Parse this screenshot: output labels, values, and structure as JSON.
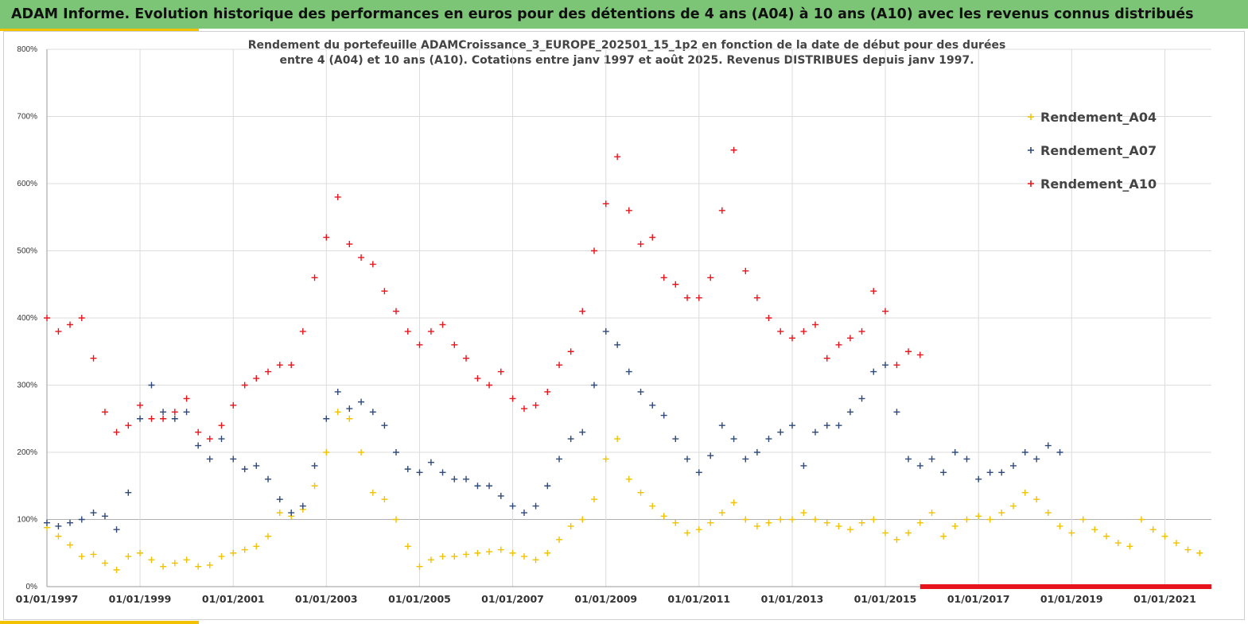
{
  "banner": {
    "title": "ADAM Informe. Evolution historique des performances en euros pour des détentions de 4 ans (A04) à 10 ans (A10) avec les revenus connus distribués"
  },
  "colors": {
    "banner_bg": "#7cc576",
    "accent": "#f2c200",
    "A04": "#f2c200",
    "A07": "#2f4a7a",
    "A10": "#e8141c"
  },
  "chart_data": {
    "type": "scatter",
    "title_lines": [
      "Rendement du portefeuille ADAMCroissance_3_EUROPE_202501_15_1p2  en fonction de la date de début pour des durées",
      "entre 4 (A04) et 10 ans (A10). Cotations entre janv 1997 et août 2025. Revenus DISTRIBUES depuis janv 1997."
    ],
    "xlabel": "",
    "ylabel": "",
    "x_range": [
      "1997-01-01",
      "2022-01-01"
    ],
    "ylim": [
      0,
      800
    ],
    "y_ticks": [
      "0%",
      "100%",
      "200%",
      "300%",
      "400%",
      "500%",
      "600%",
      "700%",
      "800%"
    ],
    "x_ticks": [
      "01/01/1997",
      "01/01/1999",
      "01/01/2001",
      "01/01/2003",
      "01/01/2005",
      "01/01/2007",
      "01/01/2009",
      "01/01/2011",
      "01/01/2013",
      "01/01/2015",
      "01/01/2017",
      "01/01/2019",
      "01/01/2021"
    ],
    "grid": true,
    "legend_position": "top-right",
    "marker": "+",
    "series": [
      {
        "name": "Rendement_A04",
        "color": "#f2c200",
        "points": [
          [
            "1997-01-01",
            88
          ],
          [
            "1997-04-01",
            75
          ],
          [
            "1997-07-01",
            62
          ],
          [
            "1997-10-01",
            45
          ],
          [
            "1998-01-01",
            48
          ],
          [
            "1998-04-01",
            35
          ],
          [
            "1998-07-01",
            25
          ],
          [
            "1998-10-01",
            45
          ],
          [
            "1999-01-01",
            50
          ],
          [
            "1999-04-01",
            40
          ],
          [
            "1999-07-01",
            30
          ],
          [
            "1999-10-01",
            35
          ],
          [
            "2000-01-01",
            40
          ],
          [
            "2000-04-01",
            30
          ],
          [
            "2000-07-01",
            32
          ],
          [
            "2000-10-01",
            45
          ],
          [
            "2001-01-01",
            50
          ],
          [
            "2001-04-01",
            55
          ],
          [
            "2001-07-01",
            60
          ],
          [
            "2001-10-01",
            75
          ],
          [
            "2002-01-01",
            110
          ],
          [
            "2002-04-01",
            105
          ],
          [
            "2002-07-01",
            115
          ],
          [
            "2002-10-01",
            150
          ],
          [
            "2003-01-01",
            200
          ],
          [
            "2003-04-01",
            260
          ],
          [
            "2003-07-01",
            250
          ],
          [
            "2003-10-01",
            200
          ],
          [
            "2004-01-01",
            140
          ],
          [
            "2004-04-01",
            130
          ],
          [
            "2004-07-01",
            100
          ],
          [
            "2004-10-01",
            60
          ],
          [
            "2005-01-01",
            30
          ],
          [
            "2005-04-01",
            40
          ],
          [
            "2005-07-01",
            45
          ],
          [
            "2005-10-01",
            45
          ],
          [
            "2006-01-01",
            48
          ],
          [
            "2006-04-01",
            50
          ],
          [
            "2006-07-01",
            52
          ],
          [
            "2006-10-01",
            55
          ],
          [
            "2007-01-01",
            50
          ],
          [
            "2007-04-01",
            45
          ],
          [
            "2007-07-01",
            40
          ],
          [
            "2007-10-01",
            50
          ],
          [
            "2008-01-01",
            70
          ],
          [
            "2008-04-01",
            90
          ],
          [
            "2008-07-01",
            100
          ],
          [
            "2008-10-01",
            130
          ],
          [
            "2009-01-01",
            190
          ],
          [
            "2009-04-01",
            220
          ],
          [
            "2009-07-01",
            160
          ],
          [
            "2009-10-01",
            140
          ],
          [
            "2010-01-01",
            120
          ],
          [
            "2010-04-01",
            105
          ],
          [
            "2010-07-01",
            95
          ],
          [
            "2010-10-01",
            80
          ],
          [
            "2011-01-01",
            85
          ],
          [
            "2011-04-01",
            95
          ],
          [
            "2011-07-01",
            110
          ],
          [
            "2011-10-01",
            125
          ],
          [
            "2012-01-01",
            100
          ],
          [
            "2012-04-01",
            90
          ],
          [
            "2012-07-01",
            95
          ],
          [
            "2012-10-01",
            100
          ],
          [
            "2013-01-01",
            100
          ],
          [
            "2013-04-01",
            110
          ],
          [
            "2013-07-01",
            100
          ],
          [
            "2013-10-01",
            95
          ],
          [
            "2014-01-01",
            90
          ],
          [
            "2014-04-01",
            85
          ],
          [
            "2014-07-01",
            95
          ],
          [
            "2014-10-01",
            100
          ],
          [
            "2015-01-01",
            80
          ],
          [
            "2015-04-01",
            70
          ],
          [
            "2015-07-01",
            80
          ],
          [
            "2015-10-01",
            95
          ],
          [
            "2016-01-01",
            110
          ],
          [
            "2016-04-01",
            75
          ],
          [
            "2016-07-01",
            90
          ],
          [
            "2016-10-01",
            100
          ],
          [
            "2017-01-01",
            105
          ],
          [
            "2017-04-01",
            100
          ],
          [
            "2017-07-01",
            110
          ],
          [
            "2017-10-01",
            120
          ],
          [
            "2018-01-01",
            140
          ],
          [
            "2018-04-01",
            130
          ],
          [
            "2018-07-01",
            110
          ],
          [
            "2018-10-01",
            90
          ],
          [
            "2019-01-01",
            80
          ],
          [
            "2019-04-01",
            100
          ],
          [
            "2019-07-01",
            85
          ],
          [
            "2019-10-01",
            75
          ],
          [
            "2020-01-01",
            65
          ],
          [
            "2020-04-01",
            60
          ],
          [
            "2020-07-01",
            100
          ],
          [
            "2020-10-01",
            85
          ],
          [
            "2021-01-01",
            75
          ],
          [
            "2021-04-01",
            65
          ],
          [
            "2021-07-01",
            55
          ],
          [
            "2021-10-01",
            50
          ]
        ]
      },
      {
        "name": "Rendement_A07",
        "color": "#2f4a7a",
        "points": [
          [
            "1997-01-01",
            95
          ],
          [
            "1997-04-01",
            90
          ],
          [
            "1997-07-01",
            95
          ],
          [
            "1997-10-01",
            100
          ],
          [
            "1998-01-01",
            110
          ],
          [
            "1998-04-01",
            105
          ],
          [
            "1998-07-01",
            85
          ],
          [
            "1998-10-01",
            140
          ],
          [
            "1999-01-01",
            250
          ],
          [
            "1999-04-01",
            300
          ],
          [
            "1999-07-01",
            260
          ],
          [
            "1999-10-01",
            250
          ],
          [
            "2000-01-01",
            260
          ],
          [
            "2000-04-01",
            210
          ],
          [
            "2000-07-01",
            190
          ],
          [
            "2000-10-01",
            220
          ],
          [
            "2001-01-01",
            190
          ],
          [
            "2001-04-01",
            175
          ],
          [
            "2001-07-01",
            180
          ],
          [
            "2001-10-01",
            160
          ],
          [
            "2002-01-01",
            130
          ],
          [
            "2002-04-01",
            110
          ],
          [
            "2002-07-01",
            120
          ],
          [
            "2002-10-01",
            180
          ],
          [
            "2003-01-01",
            250
          ],
          [
            "2003-04-01",
            290
          ],
          [
            "2003-07-01",
            265
          ],
          [
            "2003-10-01",
            275
          ],
          [
            "2004-01-01",
            260
          ],
          [
            "2004-04-01",
            240
          ],
          [
            "2004-07-01",
            200
          ],
          [
            "2004-10-01",
            175
          ],
          [
            "2005-01-01",
            170
          ],
          [
            "2005-04-01",
            185
          ],
          [
            "2005-07-01",
            170
          ],
          [
            "2005-10-01",
            160
          ],
          [
            "2006-01-01",
            160
          ],
          [
            "2006-04-01",
            150
          ],
          [
            "2006-07-01",
            150
          ],
          [
            "2006-10-01",
            135
          ],
          [
            "2007-01-01",
            120
          ],
          [
            "2007-04-01",
            110
          ],
          [
            "2007-07-01",
            120
          ],
          [
            "2007-10-01",
            150
          ],
          [
            "2008-01-01",
            190
          ],
          [
            "2008-04-01",
            220
          ],
          [
            "2008-07-01",
            230
          ],
          [
            "2008-10-01",
            300
          ],
          [
            "2009-01-01",
            380
          ],
          [
            "2009-04-01",
            360
          ],
          [
            "2009-07-01",
            320
          ],
          [
            "2009-10-01",
            290
          ],
          [
            "2010-01-01",
            270
          ],
          [
            "2010-04-01",
            255
          ],
          [
            "2010-07-01",
            220
          ],
          [
            "2010-10-01",
            190
          ],
          [
            "2011-01-01",
            170
          ],
          [
            "2011-04-01",
            195
          ],
          [
            "2011-07-01",
            240
          ],
          [
            "2011-10-01",
            220
          ],
          [
            "2012-01-01",
            190
          ],
          [
            "2012-04-01",
            200
          ],
          [
            "2012-07-01",
            220
          ],
          [
            "2012-10-01",
            230
          ],
          [
            "2013-01-01",
            240
          ],
          [
            "2013-04-01",
            180
          ],
          [
            "2013-07-01",
            230
          ],
          [
            "2013-10-01",
            240
          ],
          [
            "2014-01-01",
            240
          ],
          [
            "2014-04-01",
            260
          ],
          [
            "2014-07-01",
            280
          ],
          [
            "2014-10-01",
            320
          ],
          [
            "2015-01-01",
            330
          ],
          [
            "2015-04-01",
            260
          ],
          [
            "2015-07-01",
            190
          ],
          [
            "2015-10-01",
            180
          ],
          [
            "2016-01-01",
            190
          ],
          [
            "2016-04-01",
            170
          ],
          [
            "2016-07-01",
            200
          ],
          [
            "2016-10-01",
            190
          ],
          [
            "2017-01-01",
            160
          ],
          [
            "2017-04-01",
            170
          ],
          [
            "2017-07-01",
            170
          ],
          [
            "2017-10-01",
            180
          ],
          [
            "2018-01-01",
            200
          ],
          [
            "2018-04-01",
            190
          ],
          [
            "2018-07-01",
            210
          ],
          [
            "2018-10-01",
            200
          ]
        ]
      },
      {
        "name": "Rendement_A10",
        "color": "#e8141c",
        "points": [
          [
            "1997-01-01",
            400
          ],
          [
            "1997-04-01",
            380
          ],
          [
            "1997-07-01",
            390
          ],
          [
            "1997-10-01",
            400
          ],
          [
            "1998-01-01",
            340
          ],
          [
            "1998-04-01",
            260
          ],
          [
            "1998-07-01",
            230
          ],
          [
            "1998-10-01",
            240
          ],
          [
            "1999-01-01",
            270
          ],
          [
            "1999-04-01",
            250
          ],
          [
            "1999-07-01",
            250
          ],
          [
            "1999-10-01",
            260
          ],
          [
            "2000-01-01",
            280
          ],
          [
            "2000-04-01",
            230
          ],
          [
            "2000-07-01",
            220
          ],
          [
            "2000-10-01",
            240
          ],
          [
            "2001-01-01",
            270
          ],
          [
            "2001-04-01",
            300
          ],
          [
            "2001-07-01",
            310
          ],
          [
            "2001-10-01",
            320
          ],
          [
            "2002-01-01",
            330
          ],
          [
            "2002-04-01",
            330
          ],
          [
            "2002-07-01",
            380
          ],
          [
            "2002-10-01",
            460
          ],
          [
            "2003-01-01",
            520
          ],
          [
            "2003-04-01",
            580
          ],
          [
            "2003-07-01",
            510
          ],
          [
            "2003-10-01",
            490
          ],
          [
            "2004-01-01",
            480
          ],
          [
            "2004-04-01",
            440
          ],
          [
            "2004-07-01",
            410
          ],
          [
            "2004-10-01",
            380
          ],
          [
            "2005-01-01",
            360
          ],
          [
            "2005-04-01",
            380
          ],
          [
            "2005-07-01",
            390
          ],
          [
            "2005-10-01",
            360
          ],
          [
            "2006-01-01",
            340
          ],
          [
            "2006-04-01",
            310
          ],
          [
            "2006-07-01",
            300
          ],
          [
            "2006-10-01",
            320
          ],
          [
            "2007-01-01",
            280
          ],
          [
            "2007-04-01",
            265
          ],
          [
            "2007-07-01",
            270
          ],
          [
            "2007-10-01",
            290
          ],
          [
            "2008-01-01",
            330
          ],
          [
            "2008-04-01",
            350
          ],
          [
            "2008-07-01",
            410
          ],
          [
            "2008-10-01",
            500
          ],
          [
            "2009-01-01",
            570
          ],
          [
            "2009-04-01",
            640
          ],
          [
            "2009-07-01",
            560
          ],
          [
            "2009-10-01",
            510
          ],
          [
            "2010-01-01",
            520
          ],
          [
            "2010-04-01",
            460
          ],
          [
            "2010-07-01",
            450
          ],
          [
            "2010-10-01",
            430
          ],
          [
            "2011-01-01",
            430
          ],
          [
            "2011-04-01",
            460
          ],
          [
            "2011-07-01",
            560
          ],
          [
            "2011-10-01",
            650
          ],
          [
            "2012-01-01",
            470
          ],
          [
            "2012-04-01",
            430
          ],
          [
            "2012-07-01",
            400
          ],
          [
            "2012-10-01",
            380
          ],
          [
            "2013-01-01",
            370
          ],
          [
            "2013-04-01",
            380
          ],
          [
            "2013-07-01",
            390
          ],
          [
            "2013-10-01",
            340
          ],
          [
            "2014-01-01",
            360
          ],
          [
            "2014-04-01",
            370
          ],
          [
            "2014-07-01",
            380
          ],
          [
            "2014-10-01",
            440
          ],
          [
            "2015-01-01",
            410
          ],
          [
            "2015-04-01",
            330
          ],
          [
            "2015-07-01",
            350
          ],
          [
            "2015-10-01",
            345
          ]
        ]
      }
    ],
    "baseline_marks": {
      "color": "#e8141c",
      "x_range": [
        "2015-10-01",
        "2022-01-01"
      ],
      "y": 0
    }
  }
}
